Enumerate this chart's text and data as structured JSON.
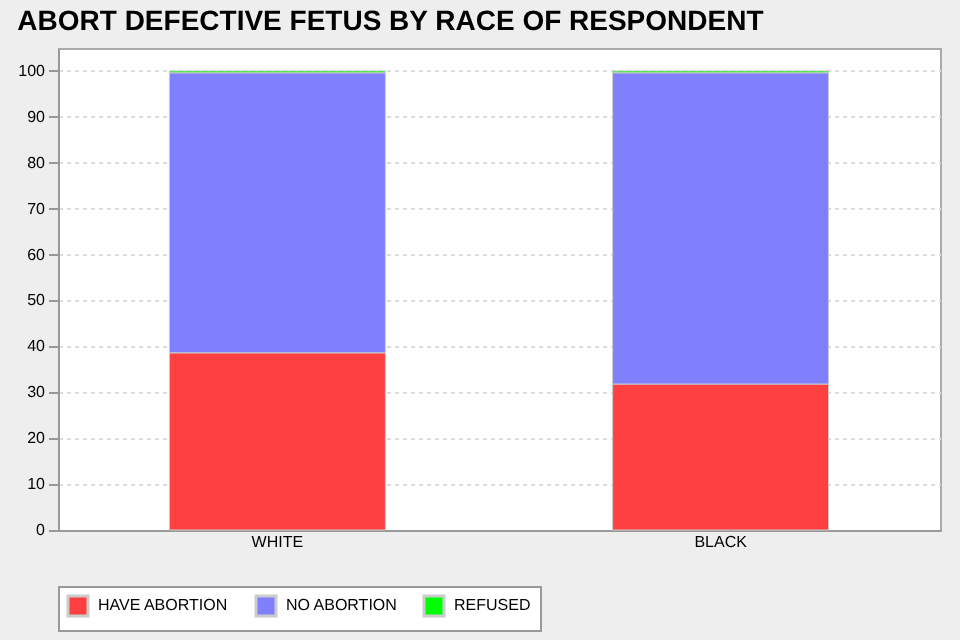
{
  "chart_data": {
    "type": "bar",
    "title": "ABORT DEFECTIVE FETUS BY RACE OF RESPONDENT",
    "categories": [
      "WHITE",
      "BLACK"
    ],
    "stacked": true,
    "series": [
      {
        "name": "HAVE ABORTION",
        "color": "#ff4040",
        "values": [
          38.6,
          31.8
        ]
      },
      {
        "name": "NO ABORTION",
        "color": "#8080ff",
        "values": [
          61.0,
          67.8
        ]
      },
      {
        "name": "REFUSED",
        "color": "#00ff00",
        "values": [
          0.4,
          0.4
        ]
      }
    ],
    "ylim": [
      0,
      105
    ],
    "yticks": [
      0,
      10,
      20,
      30,
      40,
      50,
      60,
      70,
      80,
      90,
      100
    ],
    "grid": "y",
    "legend": "bottom"
  }
}
